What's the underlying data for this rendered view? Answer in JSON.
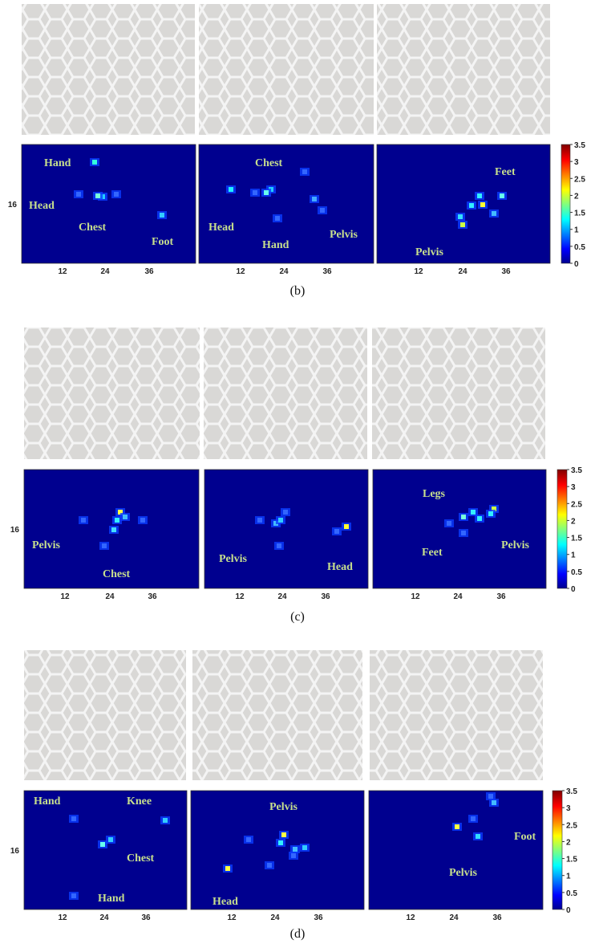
{
  "panels": [
    {
      "caption": "(b)",
      "y_tick": "16",
      "colorbar_ticks": [
        "3.5",
        "3",
        "2.5",
        "2",
        "1.5",
        "1",
        "0.5",
        "0"
      ],
      "heatmaps": [
        {
          "labels": [
            "Hand",
            "Head",
            "Chest",
            "Foot"
          ],
          "x_ticks": [
            "12",
            "24",
            "36"
          ]
        },
        {
          "labels": [
            "Chest",
            "Head",
            "Hand",
            "Pelvis"
          ],
          "x_ticks": [
            "12",
            "24",
            "36"
          ]
        },
        {
          "labels": [
            "Feet",
            "Pelvis"
          ],
          "x_ticks": [
            "12",
            "24",
            "36"
          ]
        }
      ]
    },
    {
      "caption": "(c)",
      "y_tick": "16",
      "colorbar_ticks": [
        "3.5",
        "3",
        "2.5",
        "2",
        "1.5",
        "1",
        "0.5",
        "0"
      ],
      "heatmaps": [
        {
          "labels": [
            "Pelvis",
            "Chest"
          ],
          "x_ticks": [
            "12",
            "24",
            "36"
          ]
        },
        {
          "labels": [
            "Pelvis",
            "Head"
          ],
          "x_ticks": [
            "12",
            "24",
            "36"
          ]
        },
        {
          "labels": [
            "Legs",
            "Feet",
            "Pelvis"
          ],
          "x_ticks": [
            "12",
            "24",
            "36"
          ]
        }
      ]
    },
    {
      "caption": "(d)",
      "y_tick": "16",
      "colorbar_ticks": [
        "3.5",
        "3",
        "2.5",
        "2",
        "1.5",
        "1",
        "0.5",
        "0"
      ],
      "heatmaps": [
        {
          "labels": [
            "Hand",
            "Knee",
            "Chest",
            "Hand"
          ],
          "x_ticks": [
            "12",
            "24",
            "36"
          ]
        },
        {
          "labels": [
            "Pelvis",
            "Head"
          ],
          "x_ticks": [
            "12",
            "24",
            "36"
          ]
        },
        {
          "labels": [
            "Foot",
            "Pelvis"
          ],
          "x_ticks": [
            "12",
            "24",
            "36"
          ]
        }
      ]
    }
  ]
}
